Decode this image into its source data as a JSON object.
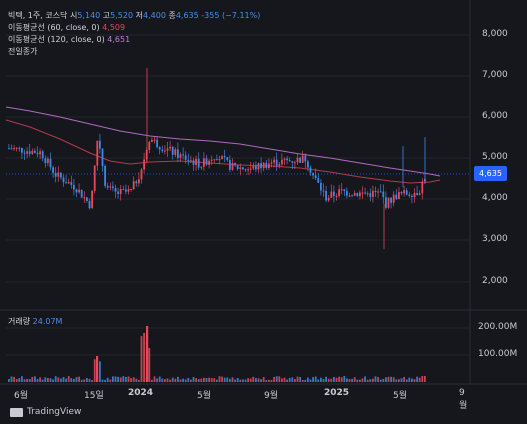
{
  "legend": {
    "symbol": "빅텍, 1주, 코스닥",
    "open_label": "시",
    "open": "5,140",
    "high_label": "고",
    "high": "5,520",
    "low_label": "저",
    "low": "4,400",
    "close_label": "종",
    "close": "4,635",
    "change": "-355 (−7.11%)",
    "ma60_label": "이동평균선 (60, close, 0)",
    "ma60_value": "4,509",
    "ma120_label": "이동평균선 (120, close, 0)",
    "ma120_value": "4,651",
    "prev_close_label": "전일종가"
  },
  "volume": {
    "label": "거래량",
    "value": "24.07M"
  },
  "price_axis": [
    "8,000",
    "7,000",
    "6,000",
    "5,000",
    "4,000",
    "3,000",
    "2,000"
  ],
  "volume_axis": [
    "200.00M",
    "100.00M"
  ],
  "time_axis": [
    "6월",
    "15일",
    "2024",
    "5월",
    "9월",
    "2025",
    "5월",
    "9월"
  ],
  "current_price_tag": "4,635",
  "brand": "TradingView",
  "colors": {
    "up": "#e8495a",
    "down": "#3f87e6",
    "ma60": "#b33a4c",
    "ma120": "#b06ac4",
    "price_tag": "#2962ff"
  }
}
